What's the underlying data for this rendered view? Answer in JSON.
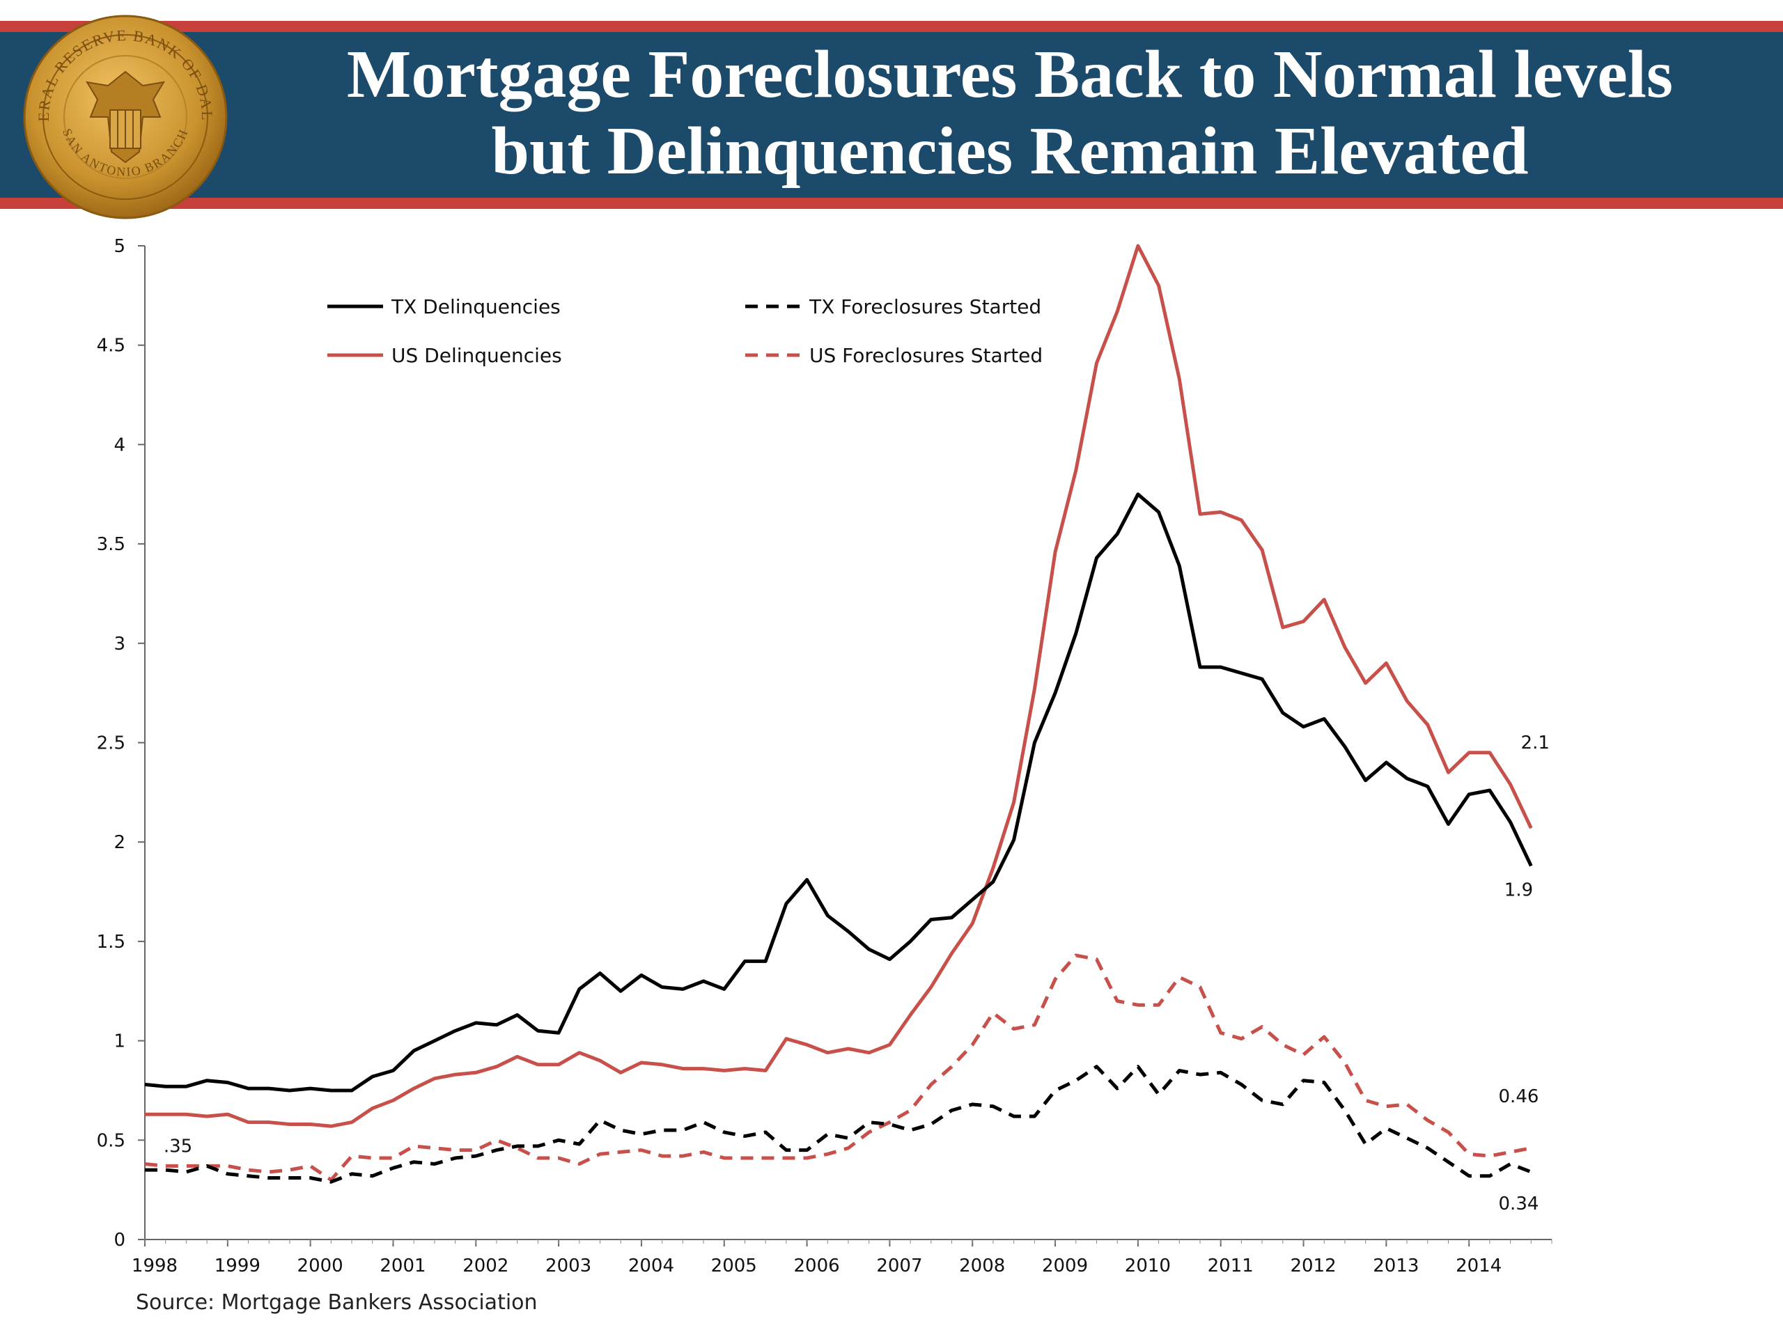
{
  "header": {
    "title_line1": "Mortgage Foreclosures Back to Normal levels",
    "title_line2": "but Delinquencies Remain Elevated",
    "seal_text_top": "FEDERAL RESERVE BANK OF DALLAS",
    "seal_text_bottom": "SAN ANTONIO BRANCH"
  },
  "source": "Source: Mortgage Bankers Association",
  "colors": {
    "banner": "#1c4a6b",
    "banner_stripe": "#c8403a",
    "tx": "#000000",
    "us": "#c8504a",
    "seal_gold": "#c9922e"
  },
  "chart_data": {
    "type": "line",
    "title": "",
    "xlabel": "",
    "ylabel": "",
    "ylim": [
      0,
      5
    ],
    "xlim": [
      1998,
      2015
    ],
    "y_ticks": [
      "0",
      "0.5",
      "1",
      "1.5",
      "2",
      "2.5",
      "3",
      "3.5",
      "4",
      "4.5",
      "5"
    ],
    "x_ticks": [
      "1998",
      "1999",
      "2000",
      "2001",
      "2002",
      "2003",
      "2004",
      "2005",
      "2006",
      "2007",
      "2008",
      "2009",
      "2010",
      "2011",
      "2012",
      "2013",
      "2014"
    ],
    "grid": false,
    "legend_position": "top-left",
    "series": [
      {
        "name": "TX Delinquencies",
        "style": "solid",
        "color": "#000000",
        "points": [
          [
            1998.0,
            0.78
          ],
          [
            1998.25,
            0.77
          ],
          [
            1998.5,
            0.77
          ],
          [
            1998.75,
            0.8
          ],
          [
            1999.0,
            0.79
          ],
          [
            1999.25,
            0.76
          ],
          [
            1999.5,
            0.76
          ],
          [
            1999.75,
            0.75
          ],
          [
            2000.0,
            0.76
          ],
          [
            2000.25,
            0.75
          ],
          [
            2000.5,
            0.75
          ],
          [
            2000.75,
            0.82
          ],
          [
            2001.0,
            0.85
          ],
          [
            2001.25,
            0.95
          ],
          [
            2001.5,
            1.0
          ],
          [
            2001.75,
            1.05
          ],
          [
            2002.0,
            1.09
          ],
          [
            2002.25,
            1.08
          ],
          [
            2002.5,
            1.13
          ],
          [
            2002.75,
            1.05
          ],
          [
            2003.0,
            1.04
          ],
          [
            2003.25,
            1.26
          ],
          [
            2003.5,
            1.34
          ],
          [
            2003.75,
            1.25
          ],
          [
            2004.0,
            1.33
          ],
          [
            2004.25,
            1.27
          ],
          [
            2004.5,
            1.26
          ],
          [
            2004.75,
            1.3
          ],
          [
            2005.0,
            1.26
          ],
          [
            2005.25,
            1.4
          ],
          [
            2005.5,
            1.4
          ],
          [
            2005.75,
            1.69
          ],
          [
            2006.0,
            1.81
          ],
          [
            2006.25,
            1.63
          ],
          [
            2006.5,
            1.55
          ],
          [
            2006.75,
            1.46
          ],
          [
            2007.0,
            1.41
          ],
          [
            2007.25,
            1.5
          ],
          [
            2007.5,
            1.61
          ],
          [
            2007.75,
            1.62
          ],
          [
            2008.0,
            1.71
          ],
          [
            2008.25,
            1.8
          ],
          [
            2008.5,
            2.01
          ],
          [
            2008.75,
            2.5
          ],
          [
            2009.0,
            2.75
          ],
          [
            2009.25,
            3.05
          ],
          [
            2009.5,
            3.43
          ],
          [
            2009.75,
            3.55
          ],
          [
            2010.0,
            3.75
          ],
          [
            2010.25,
            3.66
          ],
          [
            2010.5,
            3.39
          ],
          [
            2010.75,
            2.88
          ],
          [
            2011.0,
            2.88
          ],
          [
            2011.25,
            2.85
          ],
          [
            2011.5,
            2.82
          ],
          [
            2011.75,
            2.65
          ],
          [
            2012.0,
            2.58
          ],
          [
            2012.25,
            2.62
          ],
          [
            2012.5,
            2.48
          ],
          [
            2012.75,
            2.31
          ],
          [
            2013.0,
            2.4
          ],
          [
            2013.25,
            2.32
          ],
          [
            2013.5,
            2.28
          ],
          [
            2013.75,
            2.09
          ],
          [
            2014.0,
            2.24
          ],
          [
            2014.25,
            2.26
          ],
          [
            2014.5,
            2.1
          ],
          [
            2014.75,
            1.88
          ]
        ]
      },
      {
        "name": "US Delinquencies",
        "style": "solid",
        "color": "#c8504a",
        "points": [
          [
            1998.0,
            0.63
          ],
          [
            1998.25,
            0.63
          ],
          [
            1998.5,
            0.63
          ],
          [
            1998.75,
            0.62
          ],
          [
            1999.0,
            0.63
          ],
          [
            1999.25,
            0.59
          ],
          [
            1999.5,
            0.59
          ],
          [
            1999.75,
            0.58
          ],
          [
            2000.0,
            0.58
          ],
          [
            2000.25,
            0.57
          ],
          [
            2000.5,
            0.59
          ],
          [
            2000.75,
            0.66
          ],
          [
            2001.0,
            0.7
          ],
          [
            2001.25,
            0.76
          ],
          [
            2001.5,
            0.81
          ],
          [
            2001.75,
            0.83
          ],
          [
            2002.0,
            0.84
          ],
          [
            2002.25,
            0.87
          ],
          [
            2002.5,
            0.92
          ],
          [
            2002.75,
            0.88
          ],
          [
            2003.0,
            0.88
          ],
          [
            2003.25,
            0.94
          ],
          [
            2003.5,
            0.9
          ],
          [
            2003.75,
            0.84
          ],
          [
            2004.0,
            0.89
          ],
          [
            2004.25,
            0.88
          ],
          [
            2004.5,
            0.86
          ],
          [
            2004.75,
            0.86
          ],
          [
            2005.0,
            0.85
          ],
          [
            2005.25,
            0.86
          ],
          [
            2005.5,
            0.85
          ],
          [
            2005.75,
            1.01
          ],
          [
            2006.0,
            0.98
          ],
          [
            2006.25,
            0.94
          ],
          [
            2006.5,
            0.96
          ],
          [
            2006.75,
            0.94
          ],
          [
            2007.0,
            0.98
          ],
          [
            2007.25,
            1.13
          ],
          [
            2007.5,
            1.27
          ],
          [
            2007.75,
            1.44
          ],
          [
            2008.0,
            1.59
          ],
          [
            2008.25,
            1.87
          ],
          [
            2008.5,
            2.2
          ],
          [
            2008.75,
            2.77
          ],
          [
            2009.0,
            3.46
          ],
          [
            2009.25,
            3.87
          ],
          [
            2009.5,
            4.41
          ],
          [
            2009.75,
            4.67
          ],
          [
            2010.0,
            5.0
          ],
          [
            2010.25,
            4.8
          ],
          [
            2010.5,
            4.33
          ],
          [
            2010.75,
            3.65
          ],
          [
            2011.0,
            3.66
          ],
          [
            2011.25,
            3.62
          ],
          [
            2011.5,
            3.47
          ],
          [
            2011.75,
            3.08
          ],
          [
            2012.0,
            3.11
          ],
          [
            2012.25,
            3.22
          ],
          [
            2012.5,
            2.98
          ],
          [
            2012.75,
            2.8
          ],
          [
            2013.0,
            2.9
          ],
          [
            2013.25,
            2.71
          ],
          [
            2013.5,
            2.59
          ],
          [
            2013.75,
            2.35
          ],
          [
            2014.0,
            2.45
          ],
          [
            2014.25,
            2.45
          ],
          [
            2014.5,
            2.29
          ],
          [
            2014.75,
            2.07
          ]
        ]
      },
      {
        "name": "TX Foreclosures Started",
        "style": "dashed",
        "color": "#000000",
        "points": [
          [
            1998.0,
            0.35
          ],
          [
            1998.25,
            0.35
          ],
          [
            1998.5,
            0.34
          ],
          [
            1998.75,
            0.37
          ],
          [
            1999.0,
            0.33
          ],
          [
            1999.25,
            0.32
          ],
          [
            1999.5,
            0.31
          ],
          [
            1999.75,
            0.31
          ],
          [
            2000.0,
            0.31
          ],
          [
            2000.25,
            0.29
          ],
          [
            2000.5,
            0.33
          ],
          [
            2000.75,
            0.32
          ],
          [
            2001.0,
            0.36
          ],
          [
            2001.25,
            0.39
          ],
          [
            2001.5,
            0.38
          ],
          [
            2001.75,
            0.41
          ],
          [
            2002.0,
            0.42
          ],
          [
            2002.25,
            0.45
          ],
          [
            2002.5,
            0.47
          ],
          [
            2002.75,
            0.47
          ],
          [
            2003.0,
            0.5
          ],
          [
            2003.25,
            0.48
          ],
          [
            2003.5,
            0.6
          ],
          [
            2003.75,
            0.55
          ],
          [
            2004.0,
            0.53
          ],
          [
            2004.25,
            0.55
          ],
          [
            2004.5,
            0.55
          ],
          [
            2004.75,
            0.59
          ],
          [
            2005.0,
            0.54
          ],
          [
            2005.25,
            0.52
          ],
          [
            2005.5,
            0.54
          ],
          [
            2005.75,
            0.45
          ],
          [
            2006.0,
            0.45
          ],
          [
            2006.25,
            0.53
          ],
          [
            2006.5,
            0.51
          ],
          [
            2006.75,
            0.59
          ],
          [
            2007.0,
            0.58
          ],
          [
            2007.25,
            0.55
          ],
          [
            2007.5,
            0.58
          ],
          [
            2007.75,
            0.65
          ],
          [
            2008.0,
            0.68
          ],
          [
            2008.25,
            0.67
          ],
          [
            2008.5,
            0.62
          ],
          [
            2008.75,
            0.62
          ],
          [
            2009.0,
            0.75
          ],
          [
            2009.25,
            0.8
          ],
          [
            2009.5,
            0.87
          ],
          [
            2009.75,
            0.76
          ],
          [
            2010.0,
            0.87
          ],
          [
            2010.25,
            0.73
          ],
          [
            2010.5,
            0.85
          ],
          [
            2010.75,
            0.83
          ],
          [
            2011.0,
            0.84
          ],
          [
            2011.25,
            0.78
          ],
          [
            2011.5,
            0.7
          ],
          [
            2011.75,
            0.68
          ],
          [
            2012.0,
            0.8
          ],
          [
            2012.25,
            0.79
          ],
          [
            2012.5,
            0.65
          ],
          [
            2012.75,
            0.48
          ],
          [
            2013.0,
            0.56
          ],
          [
            2013.25,
            0.51
          ],
          [
            2013.5,
            0.46
          ],
          [
            2013.75,
            0.39
          ],
          [
            2014.0,
            0.32
          ],
          [
            2014.25,
            0.32
          ],
          [
            2014.5,
            0.38
          ],
          [
            2014.75,
            0.34
          ]
        ]
      },
      {
        "name": "US Foreclosures Started",
        "style": "dashed",
        "color": "#c8504a",
        "points": [
          [
            1998.0,
            0.38
          ],
          [
            1998.25,
            0.37
          ],
          [
            1998.5,
            0.37
          ],
          [
            1998.75,
            0.37
          ],
          [
            1999.0,
            0.37
          ],
          [
            1999.25,
            0.35
          ],
          [
            1999.5,
            0.34
          ],
          [
            1999.75,
            0.35
          ],
          [
            2000.0,
            0.37
          ],
          [
            2000.25,
            0.3
          ],
          [
            2000.5,
            0.42
          ],
          [
            2000.75,
            0.41
          ],
          [
            2001.0,
            0.41
          ],
          [
            2001.25,
            0.47
          ],
          [
            2001.5,
            0.46
          ],
          [
            2001.75,
            0.45
          ],
          [
            2002.0,
            0.45
          ],
          [
            2002.25,
            0.5
          ],
          [
            2002.5,
            0.46
          ],
          [
            2002.75,
            0.41
          ],
          [
            2003.0,
            0.41
          ],
          [
            2003.25,
            0.38
          ],
          [
            2003.5,
            0.43
          ],
          [
            2003.75,
            0.44
          ],
          [
            2004.0,
            0.45
          ],
          [
            2004.25,
            0.42
          ],
          [
            2004.5,
            0.42
          ],
          [
            2004.75,
            0.44
          ],
          [
            2005.0,
            0.41
          ],
          [
            2005.25,
            0.41
          ],
          [
            2005.5,
            0.41
          ],
          [
            2005.75,
            0.41
          ],
          [
            2006.0,
            0.41
          ],
          [
            2006.25,
            0.43
          ],
          [
            2006.5,
            0.46
          ],
          [
            2006.75,
            0.54
          ],
          [
            2007.0,
            0.59
          ],
          [
            2007.25,
            0.65
          ],
          [
            2007.5,
            0.78
          ],
          [
            2007.75,
            0.87
          ],
          [
            2008.0,
            0.98
          ],
          [
            2008.25,
            1.14
          ],
          [
            2008.5,
            1.06
          ],
          [
            2008.75,
            1.08
          ],
          [
            2009.0,
            1.31
          ],
          [
            2009.25,
            1.43
          ],
          [
            2009.5,
            1.41
          ],
          [
            2009.75,
            1.2
          ],
          [
            2010.0,
            1.18
          ],
          [
            2010.25,
            1.18
          ],
          [
            2010.5,
            1.32
          ],
          [
            2010.75,
            1.27
          ],
          [
            2011.0,
            1.04
          ],
          [
            2011.25,
            1.01
          ],
          [
            2011.5,
            1.07
          ],
          [
            2011.75,
            0.98
          ],
          [
            2012.0,
            0.93
          ],
          [
            2012.25,
            1.02
          ],
          [
            2012.5,
            0.89
          ],
          [
            2012.75,
            0.7
          ],
          [
            2013.0,
            0.67
          ],
          [
            2013.25,
            0.68
          ],
          [
            2013.5,
            0.6
          ],
          [
            2013.75,
            0.54
          ],
          [
            2014.0,
            0.43
          ],
          [
            2014.25,
            0.42
          ],
          [
            2014.5,
            0.44
          ],
          [
            2014.75,
            0.46
          ]
        ]
      }
    ],
    "annotations": [
      {
        "text": ".35",
        "x": 1998.4,
        "y": 0.44
      },
      {
        "text": "2.1",
        "x": 2014.8,
        "y": 2.47
      },
      {
        "text": "1.9",
        "x": 2014.6,
        "y": 1.73
      },
      {
        "text": "0.46",
        "x": 2014.6,
        "y": 0.69
      },
      {
        "text": "0.34",
        "x": 2014.6,
        "y": 0.15
      }
    ]
  }
}
